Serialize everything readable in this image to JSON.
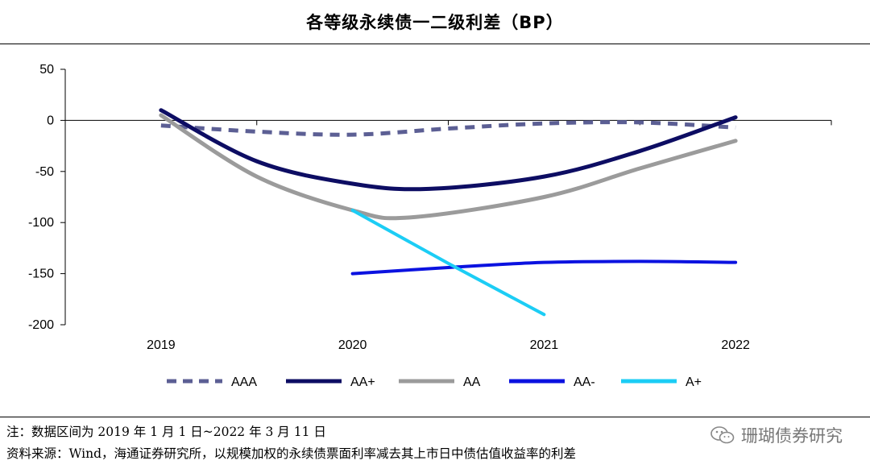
{
  "page": {
    "title": "各等级永续债一二级利差（BP）",
    "note": "注：数据区间为 2019 年 1 月 1 日~2022 年 3 月 11 日",
    "source": "资料来源：Wind，海通证券研究所，以规模加权的永续债票面利率减去其上市日中债估值收益率的利差",
    "watermark": "珊瑚债券研究",
    "watermark_icon": "wechat-icon"
  },
  "chart_data": {
    "type": "line",
    "title": "各等级永续债一二级利差（BP）",
    "xlabel": "",
    "ylabel": "",
    "x": [
      2019,
      2020,
      2021,
      2022
    ],
    "xlim": [
      2018.5,
      2022.5
    ],
    "ylim": [
      -200,
      50
    ],
    "yticks": [
      50,
      0,
      -50,
      -100,
      -150,
      -200
    ],
    "grid": false,
    "legend_position": "bottom",
    "series": [
      {
        "name": "AAA",
        "color": "#5c5f94",
        "dashed": true,
        "width": 5,
        "points": [
          [
            2019,
            -5
          ],
          [
            2019.5,
            -11
          ],
          [
            2020,
            -14
          ],
          [
            2020.5,
            -8
          ],
          [
            2021,
            -3
          ],
          [
            2021.5,
            -2
          ],
          [
            2022,
            -7
          ]
        ]
      },
      {
        "name": "AA+",
        "color": "#0d0d63",
        "dashed": false,
        "width": 5,
        "points": [
          [
            2019,
            10
          ],
          [
            2019.5,
            -40
          ],
          [
            2020,
            -62
          ],
          [
            2020.4,
            -67
          ],
          [
            2021,
            -55
          ],
          [
            2021.5,
            -30
          ],
          [
            2022,
            3
          ]
        ]
      },
      {
        "name": "AA",
        "color": "#9b9b9b",
        "dashed": false,
        "width": 5,
        "points": [
          [
            2019,
            5
          ],
          [
            2019.5,
            -55
          ],
          [
            2020,
            -88
          ],
          [
            2020.3,
            -95
          ],
          [
            2021,
            -75
          ],
          [
            2021.5,
            -47
          ],
          [
            2022,
            -20
          ]
        ]
      },
      {
        "name": "AA-",
        "color": "#0b12e0",
        "dashed": false,
        "width": 4,
        "points": [
          [
            2020,
            -150
          ],
          [
            2020.5,
            -144
          ],
          [
            2021,
            -139
          ],
          [
            2021.5,
            -138
          ],
          [
            2022,
            -139
          ]
        ]
      },
      {
        "name": "A+",
        "color": "#1ccdf5",
        "dashed": false,
        "width": 4,
        "points": [
          [
            2020,
            -88
          ],
          [
            2020.5,
            -140
          ],
          [
            2021,
            -190
          ]
        ]
      }
    ]
  }
}
